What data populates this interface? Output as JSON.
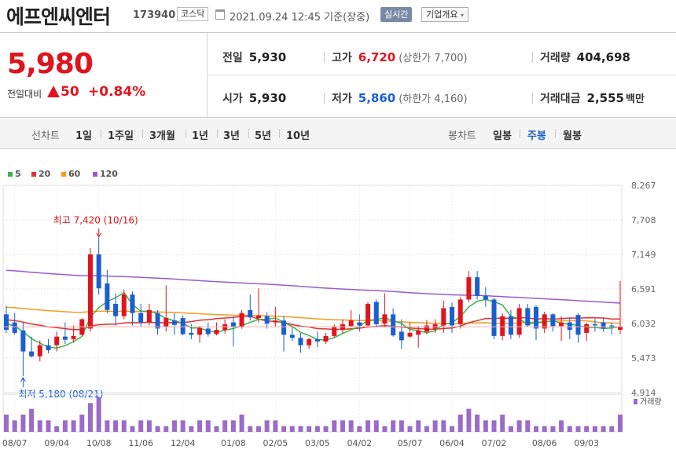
{
  "header": {
    "company_name": "에프엔씨엔터",
    "code": "173940",
    "market": "코스닥",
    "datetime": "2021.09.24 12:45",
    "basis": "기준(장중)",
    "realtime_label": "실시간",
    "company_info_label": "기업개요",
    "company_info_arrow": "▾"
  },
  "price": {
    "current": "5,980",
    "change_label": "전일대비",
    "change": "50",
    "change_pct": "+0.84%",
    "up_color": "#e0141e",
    "down_color": "#1a5fd0"
  },
  "stats": {
    "prev_close_label": "전일",
    "prev_close": "5,930",
    "open_label": "시가",
    "open": "5,930",
    "high_label": "고가",
    "high": "6,720",
    "upper_limit": "(상한가 7,700)",
    "low_label": "저가",
    "low": "5,860",
    "lower_limit": "(하한가 4,160)",
    "volume_label": "거래량",
    "volume": "404,698",
    "amount_label": "거래대금",
    "amount": "2,555",
    "amount_unit": "백만"
  },
  "period_bar": {
    "line_label": "선차트",
    "line_items": [
      "1일",
      "1주일",
      "3개월",
      "1년",
      "3년",
      "5년",
      "10년"
    ],
    "candle_label": "봉차트",
    "candle_items": [
      "일봉",
      "주봉",
      "월봉"
    ],
    "selected_candle": "주봉"
  },
  "chart_data": {
    "type": "candlestick",
    "legend": [
      {
        "name": "5",
        "color": "#3cb44b"
      },
      {
        "name": "20",
        "color": "#e6302e"
      },
      {
        "name": "60",
        "color": "#f39c1f"
      },
      {
        "name": "120",
        "color": "#9b59d0"
      }
    ],
    "y_ticks": [
      "8,267",
      "7,708",
      "7,149",
      "6,591",
      "6,032",
      "5,473",
      "4,914"
    ],
    "y_range": [
      4914,
      8267
    ],
    "x_labels": [
      "08/07",
      "09/04",
      "10/08",
      "11/06",
      "12/04",
      "01/08",
      "02/05",
      "03/05",
      "04/02",
      "05/07",
      "06/04",
      "07/02",
      "08/06",
      "09/03"
    ],
    "annotation_high": "최고 7,420 (10/16)",
    "annotation_low": "최저 5,180 (08/21)",
    "volume_label": "거래량",
    "candles": [
      {
        "o": 6180,
        "h": 6320,
        "c": 5930,
        "l": 5880
      },
      {
        "o": 6050,
        "h": 6200,
        "c": 5880,
        "l": 5850
      },
      {
        "o": 5920,
        "h": 6050,
        "c": 5580,
        "l": 5180
      },
      {
        "o": 5580,
        "h": 5820,
        "c": 5500,
        "l": 5480
      },
      {
        "o": 5500,
        "h": 5760,
        "c": 5680,
        "l": 5420
      },
      {
        "o": 5680,
        "h": 5780,
        "c": 5600,
        "l": 5550
      },
      {
        "o": 5680,
        "h": 5900,
        "c": 5820,
        "l": 5580
      },
      {
        "o": 5820,
        "h": 6050,
        "c": 5770,
        "l": 5700
      },
      {
        "o": 5780,
        "h": 6000,
        "c": 5830,
        "l": 5720
      },
      {
        "o": 5850,
        "h": 6120,
        "c": 6100,
        "l": 5830
      },
      {
        "o": 5950,
        "h": 7250,
        "c": 7150,
        "l": 5900
      },
      {
        "o": 7150,
        "h": 7420,
        "c": 6600,
        "l": 6500
      },
      {
        "o": 6680,
        "h": 6900,
        "c": 6250,
        "l": 6200
      },
      {
        "o": 6350,
        "h": 6520,
        "c": 6150,
        "l": 6000
      },
      {
        "o": 6150,
        "h": 6580,
        "c": 6500,
        "l": 6100
      },
      {
        "o": 6500,
        "h": 6550,
        "c": 6200,
        "l": 6000
      },
      {
        "o": 6200,
        "h": 6350,
        "c": 6050,
        "l": 5980
      },
      {
        "o": 6050,
        "h": 6350,
        "c": 6250,
        "l": 6000
      },
      {
        "o": 6200,
        "h": 6250,
        "c": 5950,
        "l": 5850
      },
      {
        "o": 5980,
        "h": 6650,
        "c": 6120,
        "l": 5900
      },
      {
        "o": 6080,
        "h": 6200,
        "c": 6010,
        "l": 5850
      },
      {
        "o": 6120,
        "h": 6160,
        "c": 5860,
        "l": 5840
      },
      {
        "o": 5880,
        "h": 6020,
        "c": 5850,
        "l": 5780
      },
      {
        "o": 5850,
        "h": 5990,
        "c": 5960,
        "l": 5720
      },
      {
        "o": 5950,
        "h": 6050,
        "c": 5860,
        "l": 5820
      },
      {
        "o": 5860,
        "h": 6050,
        "c": 5930,
        "l": 5840
      },
      {
        "o": 5930,
        "h": 6100,
        "c": 6020,
        "l": 5870
      },
      {
        "o": 6050,
        "h": 6150,
        "c": 5980,
        "l": 5660
      },
      {
        "o": 5980,
        "h": 6250,
        "c": 6200,
        "l": 5950
      },
      {
        "o": 6250,
        "h": 6500,
        "c": 6130,
        "l": 6080
      },
      {
        "o": 6120,
        "h": 6600,
        "c": 6160,
        "l": 6050
      },
      {
        "o": 6150,
        "h": 6220,
        "c": 6030,
        "l": 5950
      },
      {
        "o": 6050,
        "h": 6300,
        "c": 6080,
        "l": 5980
      },
      {
        "o": 6080,
        "h": 6150,
        "c": 5850,
        "l": 5580
      },
      {
        "o": 5850,
        "h": 6000,
        "c": 5800,
        "l": 5750
      },
      {
        "o": 5800,
        "h": 5880,
        "c": 5680,
        "l": 5560
      },
      {
        "o": 5680,
        "h": 5800,
        "c": 5780,
        "l": 5620
      },
      {
        "o": 5780,
        "h": 5900,
        "c": 5740,
        "l": 5650
      },
      {
        "o": 5740,
        "h": 5880,
        "c": 5830,
        "l": 5700
      },
      {
        "o": 5830,
        "h": 6020,
        "c": 5980,
        "l": 5800
      },
      {
        "o": 5930,
        "h": 6100,
        "c": 6020,
        "l": 5880
      },
      {
        "o": 5990,
        "h": 6250,
        "c": 6080,
        "l": 5970
      },
      {
        "o": 6050,
        "h": 6180,
        "c": 6000,
        "l": 5900
      },
      {
        "o": 6000,
        "h": 6380,
        "c": 6350,
        "l": 5980
      },
      {
        "o": 6380,
        "h": 6420,
        "c": 6020,
        "l": 5970
      },
      {
        "o": 6030,
        "h": 6520,
        "c": 6180,
        "l": 5970
      },
      {
        "o": 6180,
        "h": 6280,
        "c": 5840,
        "l": 5820
      },
      {
        "o": 5900,
        "h": 6100,
        "c": 5760,
        "l": 5620
      },
      {
        "o": 5820,
        "h": 6050,
        "c": 5880,
        "l": 5800
      },
      {
        "o": 5850,
        "h": 5990,
        "c": 5920,
        "l": 5640
      },
      {
        "o": 5900,
        "h": 6090,
        "c": 6000,
        "l": 5860
      },
      {
        "o": 5950,
        "h": 6100,
        "c": 6020,
        "l": 5880
      },
      {
        "o": 6000,
        "h": 6400,
        "c": 6280,
        "l": 5880
      },
      {
        "o": 6300,
        "h": 6370,
        "c": 6000,
        "l": 5880
      },
      {
        "o": 6020,
        "h": 6460,
        "c": 6420,
        "l": 5950
      },
      {
        "o": 6420,
        "h": 6880,
        "c": 6780,
        "l": 6380
      },
      {
        "o": 6780,
        "h": 6880,
        "c": 6480,
        "l": 6420
      },
      {
        "o": 6480,
        "h": 6620,
        "c": 6420,
        "l": 6300
      },
      {
        "o": 6420,
        "h": 6450,
        "c": 5830,
        "l": 5780
      },
      {
        "o": 5830,
        "h": 6200,
        "c": 6150,
        "l": 5760
      },
      {
        "o": 6150,
        "h": 6250,
        "c": 5850,
        "l": 5780
      },
      {
        "o": 5850,
        "h": 6350,
        "c": 6280,
        "l": 5800
      },
      {
        "o": 6280,
        "h": 6350,
        "c": 6000,
        "l": 5980
      },
      {
        "o": 6300,
        "h": 6330,
        "c": 5950,
        "l": 5760
      },
      {
        "o": 5950,
        "h": 6220,
        "c": 6180,
        "l": 5880
      },
      {
        "o": 6180,
        "h": 6200,
        "c": 5990,
        "l": 5900
      },
      {
        "o": 5990,
        "h": 6150,
        "c": 6050,
        "l": 5750
      },
      {
        "o": 6050,
        "h": 6130,
        "c": 5930,
        "l": 5780
      },
      {
        "o": 6170,
        "h": 6200,
        "c": 5850,
        "l": 5720
      },
      {
        "o": 5880,
        "h": 6050,
        "c": 6020,
        "l": 5750
      },
      {
        "o": 6020,
        "h": 6110,
        "c": 6000,
        "l": 5900
      },
      {
        "o": 6050,
        "h": 6130,
        "c": 5950,
        "l": 5900
      },
      {
        "o": 6000,
        "h": 6050,
        "c": 5970,
        "l": 5850
      },
      {
        "o": 5930,
        "h": 6720,
        "c": 5980,
        "l": 5860
      }
    ],
    "volume": [
      3,
      2,
      3,
      4,
      2,
      2,
      1,
      2,
      2,
      3,
      5,
      6,
      2,
      2,
      2,
      1,
      2,
      2,
      1,
      1,
      2,
      2,
      1,
      2,
      2,
      1,
      2,
      2,
      3,
      1,
      1,
      2,
      2,
      1,
      1,
      1,
      1,
      1,
      1,
      2,
      2,
      2,
      1,
      2,
      2,
      1,
      2,
      2,
      1,
      2,
      1,
      2,
      2,
      1,
      3,
      4,
      3,
      2,
      2,
      3,
      1,
      2,
      2,
      1,
      1,
      1,
      2,
      1,
      1,
      1,
      1,
      1,
      1,
      3
    ]
  }
}
